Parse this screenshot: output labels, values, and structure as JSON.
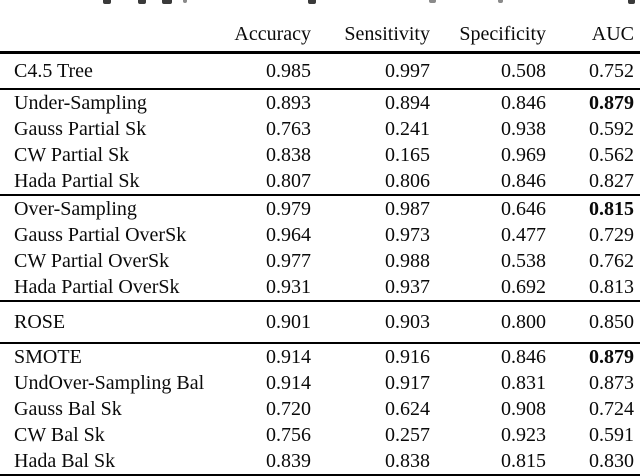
{
  "cropped_caption": {
    "visible": true,
    "note": "top line of caption text is cut off; only descender fragments visible"
  },
  "chart_data": {
    "type": "table",
    "columns": [
      "Accuracy",
      "Sensitivity",
      "Specificity",
      "AUC"
    ],
    "groups": [
      {
        "name": "baseline",
        "rows": [
          {
            "label": "C4.5 Tree",
            "values": [
              "0.985",
              "0.997",
              "0.508",
              "0.752"
            ],
            "bold": []
          }
        ]
      },
      {
        "name": "under-sampling",
        "rows": [
          {
            "label": "Under-Sampling",
            "values": [
              "0.893",
              "0.894",
              "0.846",
              "0.879"
            ],
            "bold": [
              3
            ]
          },
          {
            "label": "Gauss Partial Sk",
            "values": [
              "0.763",
              "0.241",
              "0.938",
              "0.592"
            ],
            "bold": []
          },
          {
            "label": "CW Partial Sk",
            "values": [
              "0.838",
              "0.165",
              "0.969",
              "0.562"
            ],
            "bold": []
          },
          {
            "label": "Hada Partial Sk",
            "values": [
              "0.807",
              "0.806",
              "0.846",
              "0.827"
            ],
            "bold": []
          }
        ]
      },
      {
        "name": "over-sampling",
        "rows": [
          {
            "label": "Over-Sampling",
            "values": [
              "0.979",
              "0.987",
              "0.646",
              "0.815"
            ],
            "bold": [
              3
            ]
          },
          {
            "label": "Gauss Partial OverSk",
            "values": [
              "0.964",
              "0.973",
              "0.477",
              "0.729"
            ],
            "bold": []
          },
          {
            "label": "CW Partial OverSk",
            "values": [
              "0.977",
              "0.988",
              "0.538",
              "0.762"
            ],
            "bold": []
          },
          {
            "label": "Hada Partial OverSk",
            "values": [
              "0.931",
              "0.937",
              "0.692",
              "0.813"
            ],
            "bold": []
          }
        ]
      },
      {
        "name": "rose",
        "rows": [
          {
            "label": "ROSE",
            "values": [
              "0.901",
              "0.903",
              "0.800",
              "0.850"
            ],
            "bold": []
          }
        ]
      },
      {
        "name": "smote-balanced",
        "rows": [
          {
            "label": "SMOTE",
            "values": [
              "0.914",
              "0.916",
              "0.846",
              "0.879"
            ],
            "bold": [
              3
            ]
          },
          {
            "label": "UndOver-Sampling Bal",
            "values": [
              "0.914",
              "0.917",
              "0.831",
              "0.873"
            ],
            "bold": []
          },
          {
            "label": "Gauss Bal Sk",
            "values": [
              "0.720",
              "0.624",
              "0.908",
              "0.724"
            ],
            "bold": []
          },
          {
            "label": "CW Bal Sk",
            "values": [
              "0.756",
              "0.257",
              "0.923",
              "0.591"
            ],
            "bold": []
          },
          {
            "label": "Hada Bal Sk",
            "values": [
              "0.839",
              "0.838",
              "0.815",
              "0.830"
            ],
            "bold": []
          }
        ]
      }
    ]
  }
}
